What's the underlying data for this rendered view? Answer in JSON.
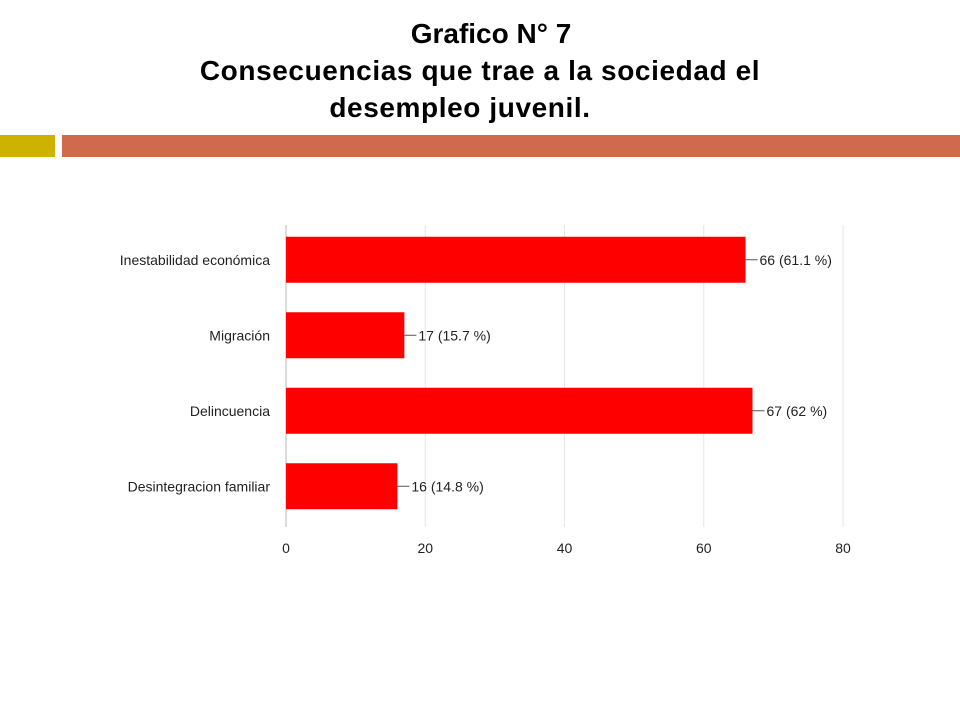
{
  "slide": {
    "title_line1": "Grafico N° 7",
    "title_line2": "Consecuencias que trae a la sociedad el",
    "title_line3": "desempleo juvenil.",
    "accent_color": "#cdb300",
    "band_color": "#d06a4c"
  },
  "chart_data": {
    "type": "bar",
    "orientation": "horizontal",
    "categories": [
      "Inestabilidad económica",
      "Migración",
      "Delincuencia",
      "Desintegracion familiar"
    ],
    "values": [
      66,
      17,
      67,
      16
    ],
    "data_labels": [
      "66 (61.1 %)",
      "17 (15.7 %)",
      "67 (62 %)",
      "16 (14.8 %)"
    ],
    "xlim": [
      0,
      80
    ],
    "xticks": [
      "0",
      "20",
      "40",
      "60",
      "80"
    ],
    "grid": true,
    "bar_color": "#ff0000",
    "grid_color": "#e6e6e6"
  }
}
